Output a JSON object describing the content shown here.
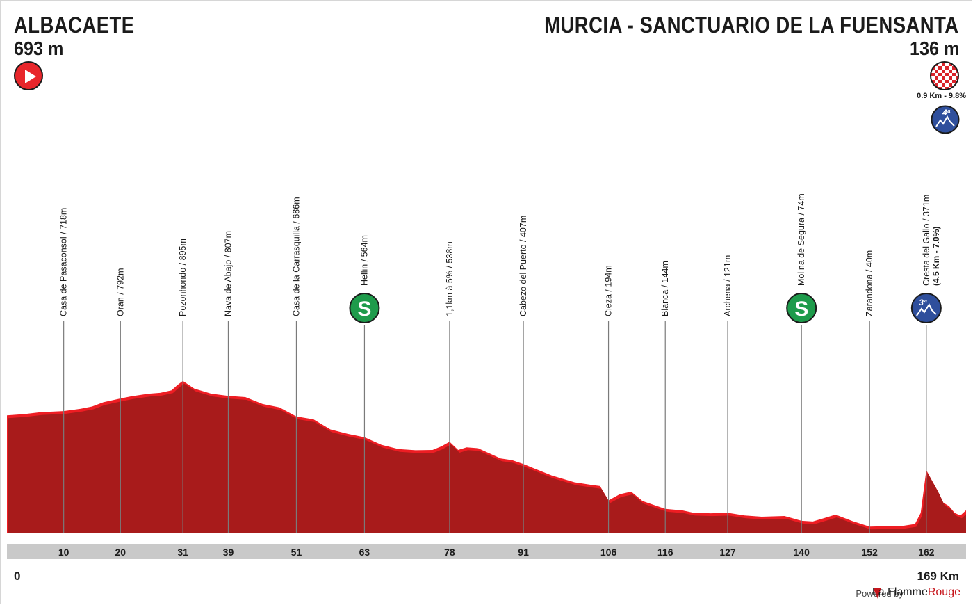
{
  "start": {
    "name": "ALBACAETE",
    "altitude": "693 m"
  },
  "finish": {
    "name": "MURCIA - SANCTUARIO DE LA FUENSANTA",
    "altitude": "136 m",
    "climb_info": "0.9 Km - 9.8%",
    "category": "4ª"
  },
  "footer": {
    "powered_by": "Powered by",
    "brand_part1": "La Flamme",
    "brand_part2": "Rouge"
  },
  "colors": {
    "profile_fill": "#a81b1b",
    "climb_highlight": "#ee1d23",
    "sprint": "#1e9b4b",
    "kom": "#2f4f9c",
    "axis_bar": "#c9c9c9",
    "start": "#e8262b"
  },
  "chart_data": {
    "type": "area",
    "title": "",
    "xlabel": "",
    "ylabel": "",
    "xlim": [
      0,
      169
    ],
    "x_unit": "Km",
    "axis_start_label": "0",
    "axis_end_label": "169 Km",
    "grid": false,
    "legend": "none",
    "series": [
      {
        "x": [
          0,
          3,
          6,
          10,
          13,
          15,
          17,
          20,
          22,
          25,
          27,
          29,
          30,
          31,
          33,
          36,
          39,
          42,
          45,
          48,
          51,
          54,
          57,
          60,
          63,
          66,
          69,
          72,
          75,
          76.5,
          78,
          79.5,
          81,
          83,
          85,
          87,
          89,
          91,
          93,
          96,
          100,
          103,
          104.5,
          106,
          108,
          110,
          112,
          116,
          119,
          121,
          124,
          127,
          130,
          133,
          137,
          140,
          142,
          144,
          146,
          149,
          152,
          155,
          158,
          160,
          161,
          162,
          163,
          164,
          165,
          166,
          167,
          168,
          169
        ],
        "y": [
          693,
          700,
          712,
          718,
          732,
          745,
          770,
          792,
          805,
          820,
          825,
          840,
          870,
          895,
          850,
          820,
          807,
          800,
          760,
          740,
          686,
          670,
          610,
          585,
          564,
          520,
          495,
          488,
          490,
          510,
          538,
          490,
          505,
          500,
          470,
          440,
          430,
          407,
          380,
          340,
          300,
          285,
          278,
          194,
          230,
          245,
          190,
          144,
          135,
          121,
          118,
          121,
          105,
          98,
          102,
          74,
          70,
          90,
          110,
          72,
          40,
          42,
          45,
          55,
          120,
          371,
          310,
          250,
          180,
          160,
          120,
          105,
          136
        ]
      }
    ],
    "points": [
      {
        "km": 10,
        "name": "Casa de Pasaconsol / 718m",
        "icon": "none"
      },
      {
        "km": 20,
        "name": "Oran / 792m",
        "icon": "none"
      },
      {
        "km": 31,
        "name": "Pozonhondo / 895m",
        "icon": "none"
      },
      {
        "km": 39,
        "name": "Nava de Abajo / 807m",
        "icon": "none"
      },
      {
        "km": 51,
        "name": "Casa de la Carrasquilla / 686m",
        "icon": "none"
      },
      {
        "km": 63,
        "name": "Hellin / 564m",
        "icon": "sprint",
        "badge": "S"
      },
      {
        "km": 78,
        "name": "1,1km à 5% / 538m",
        "icon": "none"
      },
      {
        "km": 91,
        "name": "Cabezo del Puerto / 407m",
        "icon": "none"
      },
      {
        "km": 106,
        "name": "Cieza / 194m",
        "icon": "none"
      },
      {
        "km": 116,
        "name": "Blanca / 144m",
        "icon": "none"
      },
      {
        "km": 127,
        "name": "Archena / 121m",
        "icon": "none"
      },
      {
        "km": 140,
        "name": "Molina de Segura / 74m",
        "icon": "sprint",
        "badge": "S"
      },
      {
        "km": 152,
        "name": "Zarandona / 40m",
        "icon": "none"
      },
      {
        "km": 162,
        "name": "Cresta del Gallo / 371m",
        "sub": "(4.5 Km - 7.0%)",
        "icon": "kom",
        "badge": "3ª"
      }
    ],
    "ticks": [
      10,
      20,
      31,
      39,
      51,
      63,
      78,
      91,
      106,
      116,
      127,
      140,
      152,
      162
    ]
  }
}
